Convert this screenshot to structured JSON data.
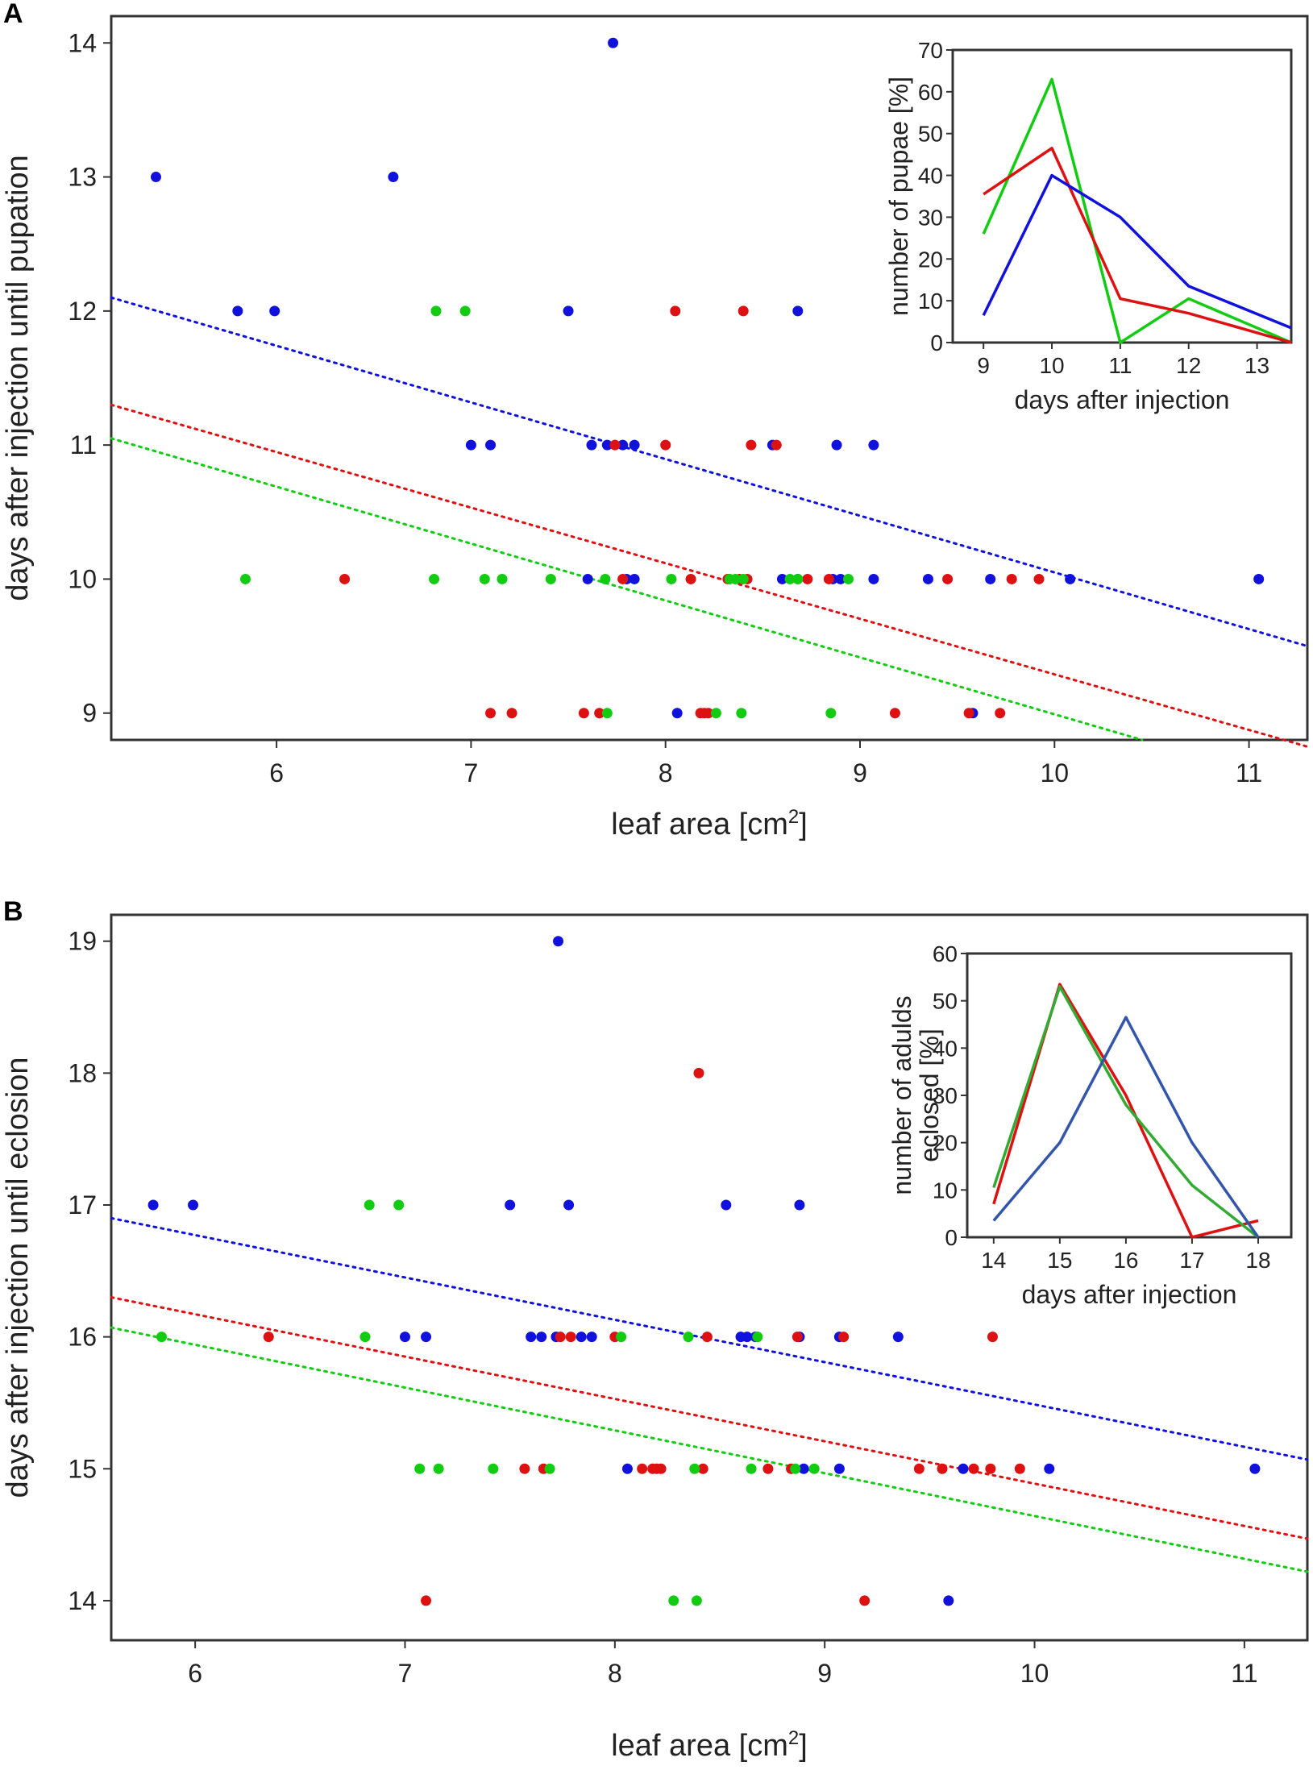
{
  "colors": {
    "blue": "#1111dd",
    "red": "#dd1111",
    "green": "#11cc11",
    "inset_blue": "#3355aa",
    "inset_green": "#33aa33"
  },
  "chart_data": [
    {
      "panel": "A",
      "type": "scatter",
      "xlabel": "leaf area  [cm",
      "xlabel_sup": "2",
      "xlabel_tail": "]",
      "ylabel": "days after injection until pupation",
      "xlim": [
        5.15,
        11.3
      ],
      "ylim": [
        8.8,
        14.2
      ],
      "xticks": [
        6,
        7,
        8,
        9,
        10,
        11
      ],
      "yticks": [
        9,
        10,
        11,
        12,
        13,
        14
      ],
      "series": [
        {
          "name": "blue",
          "points": [
            [
              5.38,
              13
            ],
            [
              6.6,
              13
            ],
            [
              7.73,
              14
            ],
            [
              5.8,
              12
            ],
            [
              5.99,
              12
            ],
            [
              7.5,
              12
            ],
            [
              8.68,
              12
            ],
            [
              7.0,
              11
            ],
            [
              7.1,
              11
            ],
            [
              7.62,
              11
            ],
            [
              7.7,
              11
            ],
            [
              7.78,
              11
            ],
            [
              7.84,
              11
            ],
            [
              8.55,
              11
            ],
            [
              8.88,
              11
            ],
            [
              9.07,
              11
            ],
            [
              7.6,
              10
            ],
            [
              7.8,
              10
            ],
            [
              7.84,
              10
            ],
            [
              8.6,
              10
            ],
            [
              8.68,
              10
            ],
            [
              8.86,
              10
            ],
            [
              8.9,
              10
            ],
            [
              9.07,
              10
            ],
            [
              9.35,
              10
            ],
            [
              9.67,
              10
            ],
            [
              10.08,
              10
            ],
            [
              11.05,
              10
            ],
            [
              8.06,
              9
            ],
            [
              9.58,
              9
            ]
          ],
          "trend": [
            [
              5.15,
              12.1
            ],
            [
              11.3,
              9.5
            ]
          ]
        },
        {
          "name": "red",
          "points": [
            [
              8.05,
              12
            ],
            [
              8.4,
              12
            ],
            [
              7.74,
              11
            ],
            [
              8.0,
              11
            ],
            [
              8.44,
              11
            ],
            [
              8.57,
              11
            ],
            [
              6.35,
              10
            ],
            [
              7.78,
              10
            ],
            [
              8.13,
              10
            ],
            [
              8.32,
              10
            ],
            [
              8.38,
              10
            ],
            [
              8.42,
              10
            ],
            [
              8.73,
              10
            ],
            [
              8.84,
              10
            ],
            [
              9.45,
              10
            ],
            [
              9.78,
              10
            ],
            [
              9.92,
              10
            ],
            [
              7.1,
              9
            ],
            [
              7.21,
              9
            ],
            [
              7.58,
              9
            ],
            [
              7.66,
              9
            ],
            [
              8.18,
              9
            ],
            [
              8.2,
              9
            ],
            [
              8.22,
              9
            ],
            [
              9.18,
              9
            ],
            [
              9.56,
              9
            ],
            [
              9.72,
              9
            ]
          ],
          "trend": [
            [
              5.15,
              11.3
            ],
            [
              11.3,
              8.75
            ]
          ]
        },
        {
          "name": "green",
          "points": [
            [
              6.82,
              12
            ],
            [
              6.97,
              12
            ],
            [
              5.84,
              10
            ],
            [
              6.81,
              10
            ],
            [
              7.07,
              10
            ],
            [
              7.16,
              10
            ],
            [
              7.41,
              10
            ],
            [
              7.69,
              10
            ],
            [
              8.03,
              10
            ],
            [
              8.33,
              10
            ],
            [
              8.36,
              10
            ],
            [
              8.4,
              10
            ],
            [
              8.64,
              10
            ],
            [
              8.68,
              10
            ],
            [
              8.94,
              10
            ],
            [
              7.7,
              9
            ],
            [
              8.26,
              9
            ],
            [
              8.39,
              9
            ],
            [
              8.85,
              9
            ]
          ],
          "trend": [
            [
              5.15,
              11.05
            ],
            [
              10.45,
              8.8
            ]
          ]
        }
      ],
      "inset": {
        "type": "line",
        "xlabel": "days after injection",
        "ylabel": "number of pupae [%]",
        "x": [
          9,
          10,
          11,
          12,
          13.5
        ],
        "xticks": [
          9,
          10,
          11,
          12,
          13
        ],
        "xlim": [
          8.55,
          13.5
        ],
        "ylim": [
          0,
          70
        ],
        "yticks": [
          0,
          10,
          20,
          30,
          40,
          50,
          60,
          70
        ],
        "series": [
          {
            "name": "green",
            "values": [
              26,
              63,
              0,
              10.5,
              0
            ]
          },
          {
            "name": "red",
            "values": [
              35.5,
              46.5,
              10.5,
              7,
              0
            ]
          },
          {
            "name": "blue",
            "values": [
              6.5,
              40,
              30,
              13.5,
              3.5
            ]
          }
        ]
      }
    },
    {
      "panel": "B",
      "type": "scatter",
      "xlabel": "leaf area  [cm",
      "xlabel_sup": "2",
      "xlabel_tail": "]",
      "ylabel": "days after injection until eclosion",
      "xlim": [
        5.6,
        11.3
      ],
      "ylim": [
        13.7,
        19.2
      ],
      "xticks": [
        6,
        7,
        8,
        9,
        10,
        11
      ],
      "yticks": [
        14,
        15,
        16,
        17,
        18,
        19
      ],
      "series": [
        {
          "name": "blue",
          "points": [
            [
              7.73,
              19
            ],
            [
              5.8,
              17
            ],
            [
              5.99,
              17
            ],
            [
              7.5,
              17
            ],
            [
              7.78,
              17
            ],
            [
              8.53,
              17
            ],
            [
              8.88,
              17
            ],
            [
              7.0,
              16
            ],
            [
              7.1,
              16
            ],
            [
              7.6,
              16
            ],
            [
              7.65,
              16
            ],
            [
              7.72,
              16
            ],
            [
              7.84,
              16
            ],
            [
              7.89,
              16
            ],
            [
              8.6,
              16
            ],
            [
              8.63,
              16
            ],
            [
              8.67,
              16
            ],
            [
              8.88,
              16
            ],
            [
              9.07,
              16
            ],
            [
              9.35,
              16
            ],
            [
              8.06,
              15
            ],
            [
              8.9,
              15
            ],
            [
              9.07,
              15
            ],
            [
              9.66,
              15
            ],
            [
              10.07,
              15
            ],
            [
              11.05,
              15
            ],
            [
              9.59,
              14
            ]
          ],
          "trend": [
            [
              5.6,
              16.9
            ],
            [
              11.3,
              15.07
            ]
          ]
        },
        {
          "name": "red",
          "points": [
            [
              8.4,
              18
            ],
            [
              6.35,
              16
            ],
            [
              7.74,
              16
            ],
            [
              7.79,
              16
            ],
            [
              8.0,
              16
            ],
            [
              8.44,
              16
            ],
            [
              8.87,
              16
            ],
            [
              9.09,
              16
            ],
            [
              9.8,
              16
            ],
            [
              7.57,
              15
            ],
            [
              7.66,
              15
            ],
            [
              8.13,
              15
            ],
            [
              8.18,
              15
            ],
            [
              8.2,
              15
            ],
            [
              8.22,
              15
            ],
            [
              8.42,
              15
            ],
            [
              8.73,
              15
            ],
            [
              8.84,
              15
            ],
            [
              9.45,
              15
            ],
            [
              9.56,
              15
            ],
            [
              9.71,
              15
            ],
            [
              9.79,
              15
            ],
            [
              9.93,
              15
            ],
            [
              7.1,
              14
            ],
            [
              9.19,
              14
            ]
          ],
          "trend": [
            [
              5.6,
              16.3
            ],
            [
              11.3,
              14.47
            ]
          ]
        },
        {
          "name": "green",
          "points": [
            [
              6.83,
              17
            ],
            [
              6.97,
              17
            ],
            [
              5.84,
              16
            ],
            [
              6.81,
              16
            ],
            [
              8.03,
              16
            ],
            [
              8.35,
              16
            ],
            [
              8.68,
              16
            ],
            [
              7.07,
              15
            ],
            [
              7.16,
              15
            ],
            [
              7.42,
              15
            ],
            [
              7.69,
              15
            ],
            [
              8.38,
              15
            ],
            [
              8.65,
              15
            ],
            [
              8.86,
              15
            ],
            [
              8.95,
              15
            ],
            [
              8.28,
              14
            ],
            [
              8.39,
              14
            ]
          ],
          "trend": [
            [
              5.6,
              16.07
            ],
            [
              11.3,
              14.22
            ]
          ]
        }
      ],
      "inset": {
        "type": "line",
        "xlabel": "days after injection",
        "ylabel": "number of adulds eclosed [%]",
        "x": [
          14,
          15,
          16,
          17,
          18
        ],
        "xticks": [
          14,
          15,
          16,
          17,
          18
        ],
        "xlim": [
          13.6,
          18.5
        ],
        "ylim": [
          0,
          60
        ],
        "yticks": [
          0,
          10,
          20,
          30,
          40,
          50,
          60
        ],
        "series": [
          {
            "name": "red",
            "values": [
              7,
              53.5,
              30,
              0,
              3.5
            ]
          },
          {
            "name": "green",
            "values": [
              10.5,
              53,
              28,
              11,
              0
            ]
          },
          {
            "name": "blue",
            "values": [
              3.5,
              20,
              46.5,
              20,
              0
            ]
          }
        ]
      }
    }
  ]
}
